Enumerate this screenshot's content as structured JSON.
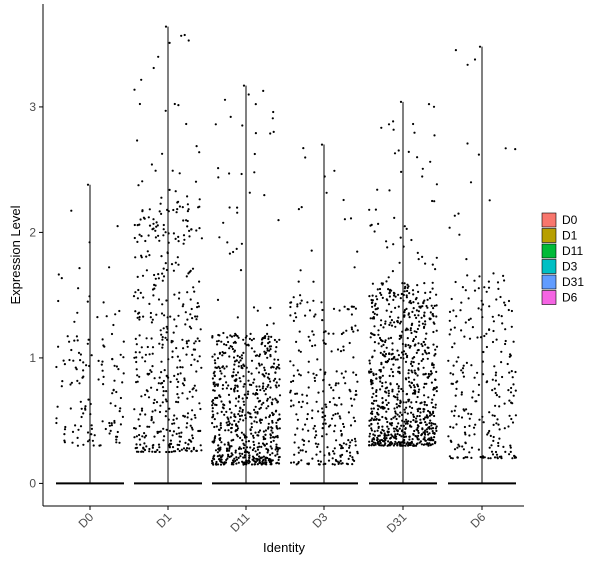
{
  "chart_data": {
    "type": "scatter",
    "subtype": "violin-jitter",
    "xlabel": "Identity",
    "ylabel": "Expression Level",
    "categories": [
      "D0",
      "D1",
      "D11",
      "D3",
      "D31",
      "D6"
    ],
    "ylim": [
      -0.18,
      3.82
    ],
    "yticks": [
      0,
      1,
      2,
      3
    ],
    "ytick_labels": [
      "0",
      "1",
      "2",
      "3"
    ],
    "grid": false,
    "legend_position": "right",
    "legend": [
      {
        "label": "D0",
        "color": "#F8766D"
      },
      {
        "label": "D1",
        "color": "#B79F00"
      },
      {
        "label": "D11",
        "color": "#00BA38"
      },
      {
        "label": "D3",
        "color": "#00BFC4"
      },
      {
        "label": "D31",
        "color": "#619CFF"
      },
      {
        "label": "D6",
        "color": "#F564E3"
      }
    ],
    "series": [
      {
        "category": "D0",
        "max": 2.38,
        "points_nonzero": 130,
        "range": [
          0.3,
          1.5
        ],
        "tail_range": [
          1.5,
          2.38
        ]
      },
      {
        "category": "D1",
        "max": 3.64,
        "points_nonzero": 430,
        "range": [
          0.25,
          2.3
        ],
        "tail_range": [
          2.3,
          3.64
        ]
      },
      {
        "category": "D11",
        "max": 3.17,
        "points_nonzero": 650,
        "range": [
          0.15,
          1.2
        ],
        "tail_range": [
          1.2,
          3.17
        ]
      },
      {
        "category": "D3",
        "max": 2.7,
        "points_nonzero": 260,
        "range": [
          0.15,
          1.5
        ],
        "tail_range": [
          1.5,
          2.7
        ]
      },
      {
        "category": "D31",
        "max": 3.04,
        "points_nonzero": 800,
        "range": [
          0.3,
          1.6
        ],
        "tail_range": [
          1.6,
          3.04
        ]
      },
      {
        "category": "D6",
        "max": 3.48,
        "points_nonzero": 240,
        "range": [
          0.2,
          1.7
        ],
        "tail_range": [
          1.7,
          3.48
        ]
      }
    ]
  },
  "colors": {
    "points": "#000000",
    "axis": "#000000",
    "ticklabel": "#4d4d4d"
  }
}
